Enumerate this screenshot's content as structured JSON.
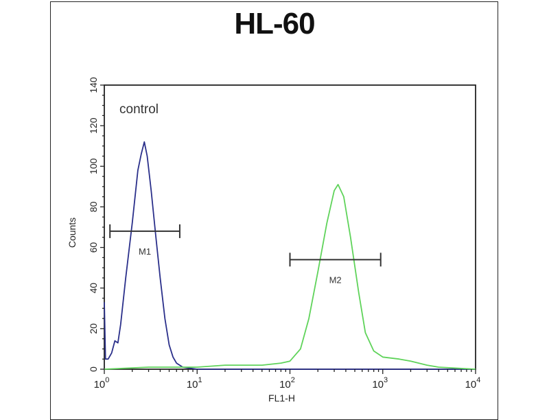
{
  "chart_data": {
    "type": "line",
    "title": "HL-60",
    "xlabel": "FL1-H",
    "ylabel": "Counts",
    "xscale": "log",
    "xlim": [
      1,
      10000
    ],
    "ylim": [
      0,
      140
    ],
    "x_ticks": [
      1,
      10,
      100,
      1000,
      10000
    ],
    "x_tick_labels": [
      [
        "10",
        "0"
      ],
      [
        "10",
        "1"
      ],
      [
        "10",
        "2"
      ],
      [
        "10",
        "3"
      ],
      [
        "10",
        "4"
      ]
    ],
    "y_ticks": [
      0,
      20,
      40,
      60,
      80,
      100,
      120,
      140
    ],
    "y_tick_labels": [
      "0",
      "20",
      "40",
      "60",
      "80",
      "100",
      "120",
      "140"
    ],
    "grid": false,
    "annotation": "control",
    "series": [
      {
        "color": "#2a2f8a",
        "points": [
          [
            1.0,
            33
          ],
          [
            1.03,
            5
          ],
          [
            1.1,
            5
          ],
          [
            1.2,
            8
          ],
          [
            1.3,
            14
          ],
          [
            1.4,
            13
          ],
          [
            1.5,
            22
          ],
          [
            1.7,
            45
          ],
          [
            2.0,
            72
          ],
          [
            2.3,
            98
          ],
          [
            2.5,
            106
          ],
          [
            2.7,
            112
          ],
          [
            2.9,
            105
          ],
          [
            3.2,
            88
          ],
          [
            3.6,
            65
          ],
          [
            4.0,
            45
          ],
          [
            4.5,
            25
          ],
          [
            5.0,
            12
          ],
          [
            5.5,
            6
          ],
          [
            6.0,
            3
          ],
          [
            7,
            1
          ],
          [
            10,
            0
          ],
          [
            100,
            0
          ],
          [
            10000,
            0
          ]
        ]
      },
      {
        "color": "#5fd35a",
        "points": [
          [
            1,
            0
          ],
          [
            3,
            1
          ],
          [
            10,
            1
          ],
          [
            20,
            2
          ],
          [
            50,
            2
          ],
          [
            80,
            3
          ],
          [
            100,
            4
          ],
          [
            130,
            10
          ],
          [
            160,
            25
          ],
          [
            200,
            48
          ],
          [
            250,
            72
          ],
          [
            300,
            88
          ],
          [
            330,
            91
          ],
          [
            380,
            85
          ],
          [
            450,
            65
          ],
          [
            550,
            38
          ],
          [
            650,
            18
          ],
          [
            800,
            9
          ],
          [
            1000,
            6
          ],
          [
            1500,
            5
          ],
          [
            2000,
            4
          ],
          [
            3000,
            2
          ],
          [
            4000,
            1
          ],
          [
            10000,
            0
          ]
        ]
      }
    ],
    "markers": [
      {
        "label": "M1",
        "x_range": [
          1.15,
          6.5
        ],
        "y": 68
      },
      {
        "label": "M2",
        "x_range": [
          100,
          950
        ],
        "y": 54
      }
    ]
  }
}
